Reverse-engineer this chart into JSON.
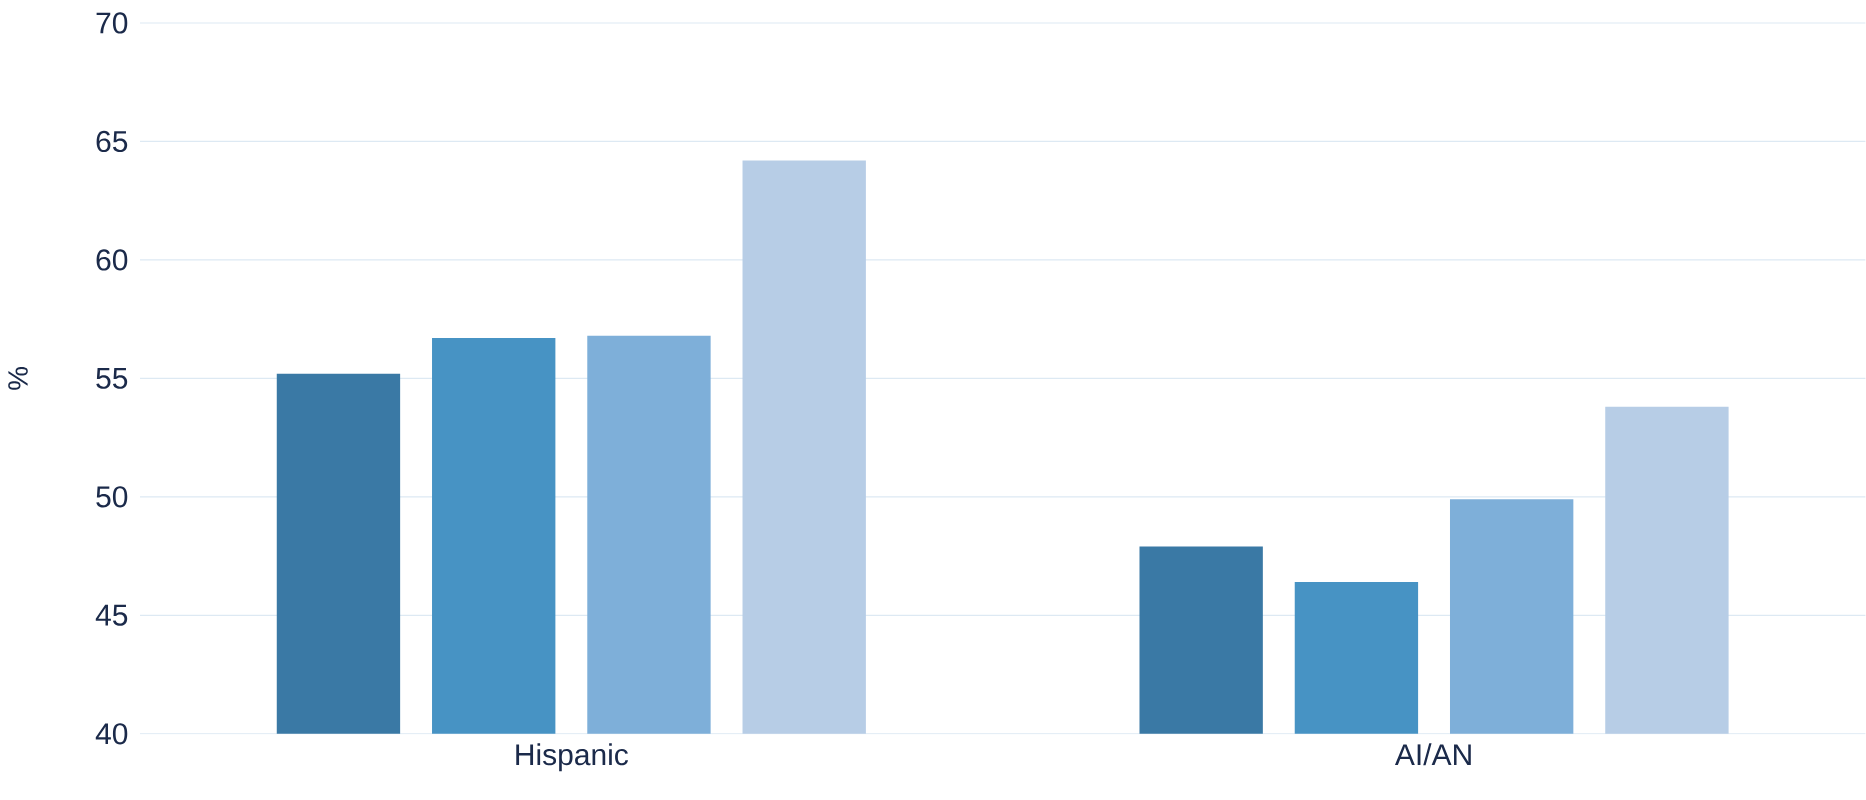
{
  "chart_data": {
    "type": "bar",
    "ylabel": "%",
    "categories": [
      "Hispanic",
      "AI/AN"
    ],
    "series": [
      {
        "color": "#3a79a5",
        "values": [
          55.2,
          47.9
        ]
      },
      {
        "color": "#4793c4",
        "values": [
          56.7,
          46.4
        ]
      },
      {
        "color": "#7eafd9",
        "values": [
          56.8,
          49.9
        ]
      },
      {
        "color": "#b7cde6",
        "values": [
          64.2,
          53.8
        ]
      }
    ],
    "ylim": [
      40,
      70
    ],
    "yticks": [
      40,
      45,
      50,
      55,
      60,
      65,
      70
    ],
    "grid": "y"
  }
}
